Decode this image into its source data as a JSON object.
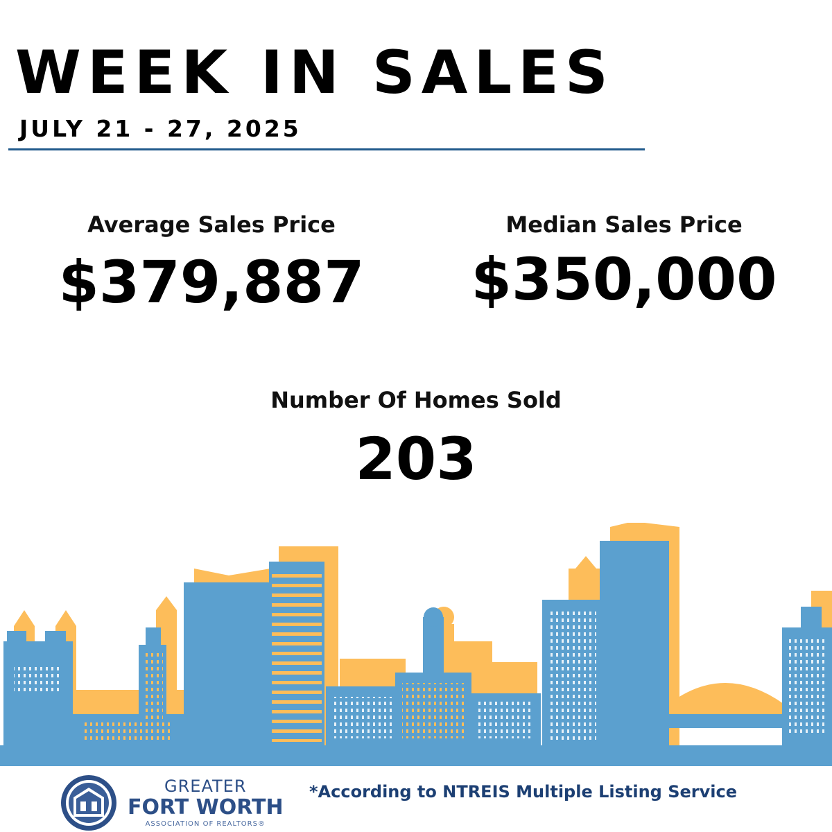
{
  "header": {
    "title": "WEEK IN SALES",
    "dates": "JULY 21 - 27, 2025"
  },
  "stats": {
    "average": {
      "label": "Average Sales Price",
      "value": "$379,887"
    },
    "median": {
      "label": "Median Sales Price",
      "value": "$350,000"
    },
    "homes": {
      "label": "Number Of Homes Sold",
      "value": "203"
    }
  },
  "footer": {
    "logo": {
      "line1": "GREATER",
      "line2": "FORT WORTH",
      "line3": "ASSOCIATION OF REALTORS®"
    },
    "source_note": "*According to NTREIS Multiple Listing Service"
  },
  "colors": {
    "accent_rule": "#215a8c",
    "skyline_blue": "#5ba0cf",
    "skyline_gold": "#fdbd5a",
    "logo_navy": "#2d4f87"
  }
}
